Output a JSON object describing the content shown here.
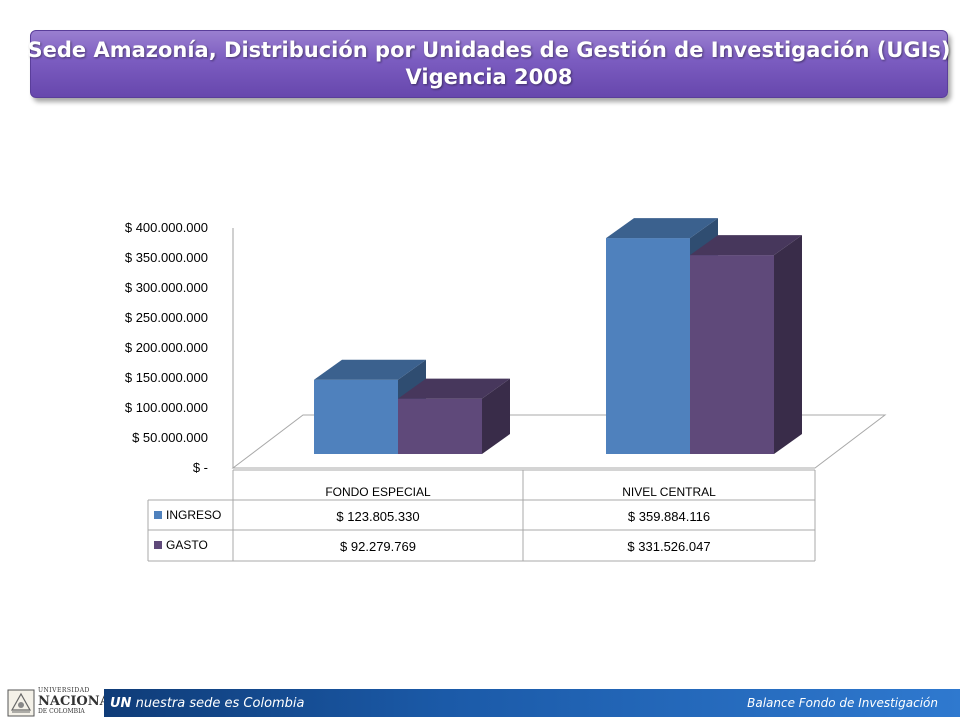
{
  "title": {
    "line1": "Sede Amazonía, Distribución por Unidades de Gestión de Investigación (UGIs)",
    "line2": "Vigencia 2008"
  },
  "chart_data": {
    "type": "bar",
    "categories": [
      "FONDO ESPECIAL",
      "NIVEL CENTRAL"
    ],
    "series": [
      {
        "name": "INGRESO",
        "values": [
          123805330,
          359884116
        ],
        "labels": [
          "$ 123.805.330",
          "$ 359.884.116"
        ],
        "color": "#4f81bd"
      },
      {
        "name": "GASTO",
        "values": [
          92279769,
          331526047
        ],
        "labels": [
          "$ 92.279.769",
          "$ 331.526.047"
        ],
        "color": "#5f497a"
      }
    ],
    "yticks": [
      "$ -",
      "$ 50.000.000",
      "$ 100.000.000",
      "$ 150.000.000",
      "$ 200.000.000",
      "$ 250.000.000",
      "$ 300.000.000",
      "$ 350.000.000",
      "$ 400.000.000"
    ],
    "ylim": [
      0,
      400000000
    ],
    "legend": "data-table"
  },
  "footer": {
    "brand": "UN",
    "tagline": "nuestra sede es Colombia",
    "right_text": "Balance Fondo de Investigación",
    "bar_color": "#1b5aa8"
  },
  "logo": {
    "line1": "UNIVERSIDAD",
    "line2": "NACIONAL",
    "line3": "DE COLOMBIA"
  }
}
